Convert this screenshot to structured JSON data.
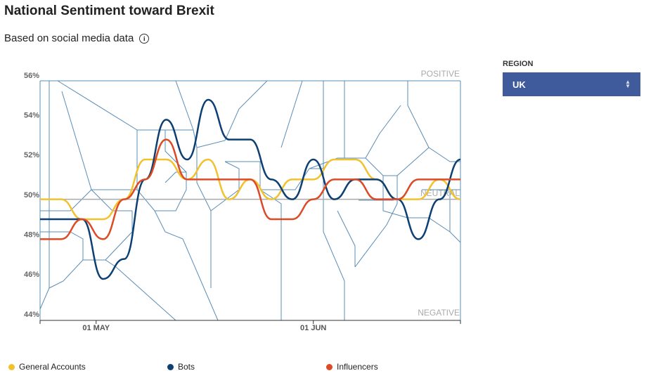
{
  "chart_data": {
    "type": "line",
    "title": "National Sentiment toward Brexit",
    "subtitle": "Based on social media data",
    "x": [
      0,
      3,
      6,
      9,
      12,
      15,
      18,
      21,
      24,
      27,
      30,
      33,
      36,
      39,
      42,
      45,
      48,
      51,
      54,
      57,
      60
    ],
    "xlim": [
      0,
      60
    ],
    "xticks": [
      {
        "value": 8,
        "label": "01 MAY"
      },
      {
        "value": 39,
        "label": "01 JUN"
      }
    ],
    "ylim": [
      44,
      56
    ],
    "yticks": [
      {
        "value": 44,
        "label": "44%"
      },
      {
        "value": 46,
        "label": "46%"
      },
      {
        "value": 48,
        "label": "48%"
      },
      {
        "value": 50,
        "label": "50%"
      },
      {
        "value": 52,
        "label": "52%"
      },
      {
        "value": 54,
        "label": "54%"
      },
      {
        "value": 56,
        "label": "56%"
      }
    ],
    "reference_line": 49.8,
    "annotations": [
      {
        "text": "POSITIVE",
        "y": 56
      },
      {
        "text": "NEUTRAL",
        "y": 50
      },
      {
        "text": "NEGATIVE",
        "y": 44
      }
    ],
    "grid": false,
    "series": [
      {
        "name": "General Accounts",
        "color": "#f2c12e",
        "values": [
          49.8,
          49.8,
          48.8,
          48.8,
          49.8,
          51.8,
          51.8,
          50.8,
          51.8,
          49.8,
          50.8,
          49.8,
          50.8,
          50.8,
          51.8,
          51.8,
          50.8,
          49.8,
          49.8,
          50.8,
          49.8
        ]
      },
      {
        "name": "Bots",
        "color": "#0d3f73",
        "values": [
          48.8,
          48.8,
          48.8,
          45.8,
          46.8,
          50.8,
          53.8,
          51.8,
          54.8,
          52.8,
          52.8,
          50.8,
          49.8,
          51.8,
          49.8,
          50.8,
          50.8,
          49.8,
          47.8,
          49.8,
          51.8
        ]
      },
      {
        "name": "Influencers",
        "color": "#dc4a26",
        "values": [
          47.8,
          47.8,
          48.8,
          47.8,
          49.8,
          50.8,
          52.8,
          50.8,
          50.8,
          50.8,
          50.8,
          48.8,
          48.8,
          49.8,
          50.8,
          50.8,
          49.8,
          49.8,
          50.8,
          50.8,
          50.8
        ]
      }
    ]
  },
  "filter": {
    "label": "REGION",
    "value": "UK"
  }
}
